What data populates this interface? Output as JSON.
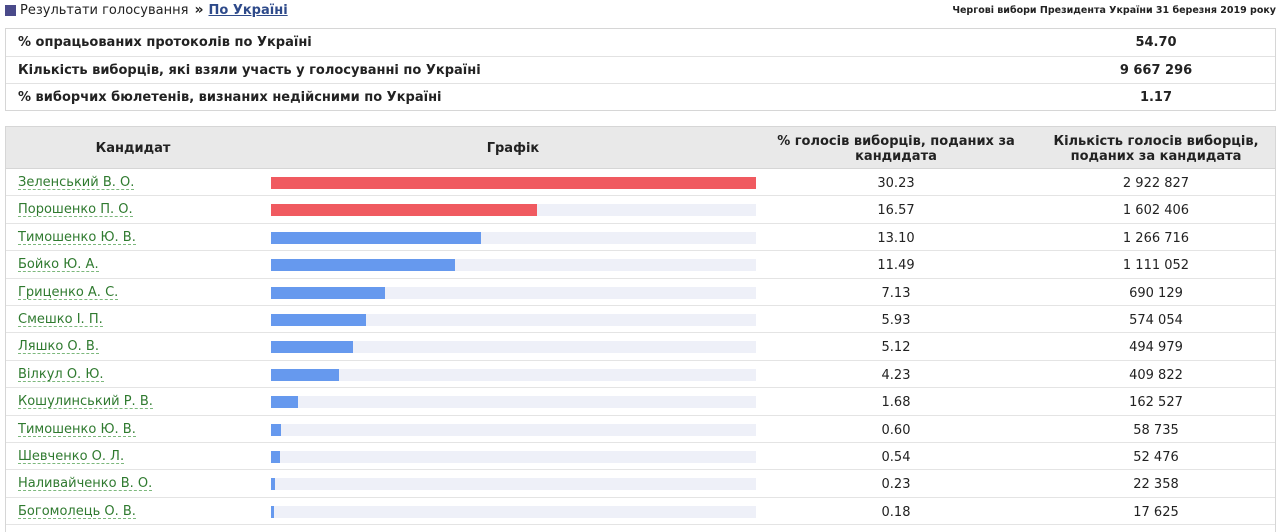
{
  "breadcrumb": {
    "label": "Результати голосування",
    "separator": "»",
    "link": "По Україні"
  },
  "election_title": "Чергові вибори Президента України 31 березня 2019 року",
  "summary": [
    {
      "label": "% опрацьованих протоколів по Україні",
      "value": "54.70"
    },
    {
      "label": "Кількість виборців, які взяли участь у голосуванні по Україні",
      "value": "9 667 296"
    },
    {
      "label": "% виборчих бюлетенів, визнаних недійсними по Україні",
      "value": "1.17"
    }
  ],
  "table": {
    "headers": {
      "candidate": "Кандидат",
      "chart": "Графік",
      "percent": "% голосів виборців, поданих за кандидата",
      "votes": "Кількість голосів виборців, поданих за кандидата"
    },
    "colors": {
      "leader": "#f05a60",
      "other": "#6699ee",
      "track": "#eef0f8"
    },
    "rows": [
      {
        "name": "Зеленський В. О.",
        "percent": "30.23",
        "votes": "2 922 827",
        "bar_share": 1.0,
        "leader": true
      },
      {
        "name": "Порошенко П. О.",
        "percent": "16.57",
        "votes": "1 602 406",
        "bar_share": 0.548,
        "leader": true
      },
      {
        "name": "Тимошенко Ю. В.",
        "percent": "13.10",
        "votes": "1 266 716",
        "bar_share": 0.433,
        "leader": false
      },
      {
        "name": "Бойко Ю. А.",
        "percent": "11.49",
        "votes": "1 111 052",
        "bar_share": 0.38,
        "leader": false
      },
      {
        "name": "Гриценко А. С.",
        "percent": "7.13",
        "votes": "690 129",
        "bar_share": 0.236,
        "leader": false
      },
      {
        "name": "Смешко І. П.",
        "percent": "5.93",
        "votes": "574 054",
        "bar_share": 0.196,
        "leader": false
      },
      {
        "name": "Ляшко О. В.",
        "percent": "5.12",
        "votes": "494 979",
        "bar_share": 0.169,
        "leader": false
      },
      {
        "name": "Вілкул О. Ю.",
        "percent": "4.23",
        "votes": "409 822",
        "bar_share": 0.14,
        "leader": false
      },
      {
        "name": "Кошулинський Р. В.",
        "percent": "1.68",
        "votes": "162 527",
        "bar_share": 0.056,
        "leader": false
      },
      {
        "name": "Тимошенко Ю. В.",
        "percent": "0.60",
        "votes": "58 735",
        "bar_share": 0.02,
        "leader": false
      },
      {
        "name": "Шевченко О. Л.",
        "percent": "0.54",
        "votes": "52 476",
        "bar_share": 0.018,
        "leader": false
      },
      {
        "name": "Наливайченко В. О.",
        "percent": "0.23",
        "votes": "22 358",
        "bar_share": 0.008,
        "leader": false
      },
      {
        "name": "Богомолець О. В.",
        "percent": "0.18",
        "votes": "17 625",
        "bar_share": 0.006,
        "leader": false
      }
    ]
  }
}
